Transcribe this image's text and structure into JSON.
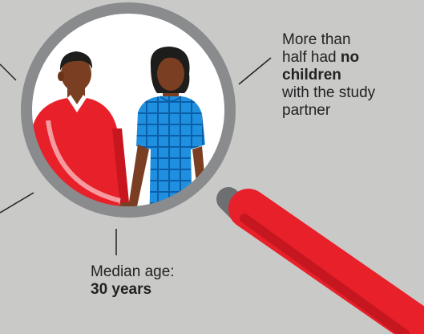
{
  "callouts": {
    "children": {
      "line1": "More than",
      "line2_prefix": "half had ",
      "line2_bold": "no",
      "line3_bold": "children",
      "line4": "with the study",
      "line5": "partner"
    },
    "age": {
      "label": "Median age:",
      "value": "30 years"
    }
  },
  "colors": {
    "background": "#c9cac8",
    "lens_ring": "#8a8b8d",
    "handle": "#e8202a",
    "man_sweater": "#e8202a",
    "woman_dress": "#1f8fe0",
    "skin": "#7a3e22",
    "hair": "#1d1d1b"
  },
  "icons": {
    "magnifier": "magnifying-glass-icon",
    "couple": "couple-illustration"
  }
}
